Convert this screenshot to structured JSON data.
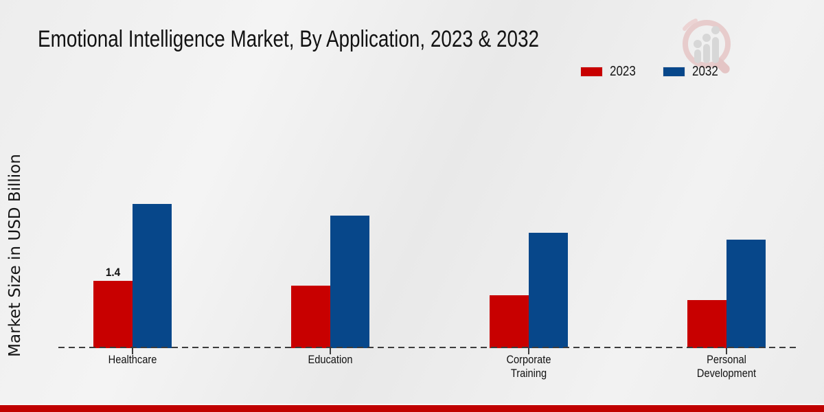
{
  "title": "Emotional Intelligence Market, By Application, 2023 & 2032",
  "y_axis_label": "Market Size in USD Billion",
  "legend": {
    "items": [
      {
        "label": "2023",
        "color": "#c80000"
      },
      {
        "label": "2032",
        "color": "#07478a"
      }
    ]
  },
  "chart_data": {
    "type": "bar",
    "title": "Emotional Intelligence Market, By Application, 2023 & 2032",
    "xlabel": "",
    "ylabel": "Market Size in USD Billion",
    "categories": [
      "Healthcare",
      "Education",
      "Corporate Training",
      "Personal Development"
    ],
    "series": [
      {
        "name": "2023",
        "color": "#c80000",
        "values": [
          1.4,
          1.3,
          1.1,
          1.0
        ],
        "data_labels": [
          "1.4",
          null,
          null,
          null
        ]
      },
      {
        "name": "2032",
        "color": "#07478a",
        "values": [
          3.0,
          2.75,
          2.4,
          2.25
        ],
        "data_labels": [
          null,
          null,
          null,
          null
        ]
      }
    ],
    "ylim": [
      0,
      3.5
    ],
    "grid": false,
    "legend_position": "top-right",
    "baseline_style": "dashed"
  },
  "icons": {
    "watermark": "market-research-magnifier-logo"
  },
  "colors": {
    "series_2023": "#c80000",
    "series_2032": "#07478a",
    "footer_stripe": "#c00000",
    "background": "#ededed",
    "baseline": "#3c3c3c"
  },
  "footer": {}
}
